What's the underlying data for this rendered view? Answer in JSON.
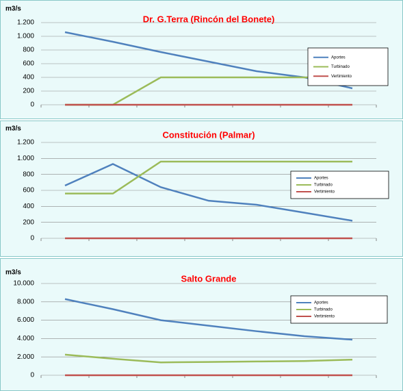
{
  "chart_data": [
    {
      "type": "line",
      "title": "Dr. G.Terra (Rincón del Bonete)",
      "y_label": "m3/s",
      "categories": [
        null,
        null,
        null,
        null,
        null,
        null,
        null
      ],
      "series": [
        {
          "name": "Aportes",
          "color": "#4f81bd",
          "values": [
            1060,
            920,
            770,
            630,
            490,
            400,
            240
          ]
        },
        {
          "name": "Turbinado",
          "color": "#9bbb59",
          "values": [
            0,
            0,
            400,
            400,
            400,
            400,
            400
          ]
        },
        {
          "name": "Vertimiento",
          "color": "#c0504d",
          "values": [
            0,
            0,
            0,
            0,
            0,
            0,
            0
          ]
        }
      ],
      "ylim": [
        0,
        1200
      ],
      "yticks": [
        0,
        200,
        400,
        600,
        800,
        {
          "value": 1000,
          "label": "1.000"
        },
        {
          "value": 1200,
          "label": "1.200"
        }
      ],
      "grid": true
    },
    {
      "type": "line",
      "title": "Constitución (Palmar)",
      "y_label": "m3/s",
      "categories": [
        null,
        null,
        null,
        null,
        null,
        null,
        null
      ],
      "series": [
        {
          "name": "Aportes",
          "color": "#4f81bd",
          "values": [
            660,
            930,
            640,
            470,
            420,
            320,
            220
          ]
        },
        {
          "name": "Turbinado",
          "color": "#9bbb59",
          "values": [
            560,
            560,
            960,
            960,
            960,
            960,
            960
          ]
        },
        {
          "name": "Vertimiento",
          "color": "#c0504d",
          "values": [
            0,
            0,
            0,
            0,
            0,
            0,
            0
          ]
        }
      ],
      "ylim": [
        0,
        1200
      ],
      "yticks": [
        0,
        200,
        400,
        600,
        800,
        {
          "value": 1000,
          "label": "1.000"
        },
        {
          "value": 1200,
          "label": "1.200"
        }
      ],
      "grid": true
    },
    {
      "type": "line",
      "title": "Salto Grande",
      "y_label": "m3/s",
      "categories": [
        null,
        null,
        null,
        null,
        null,
        null,
        null
      ],
      "series": [
        {
          "name": "Aportes",
          "color": "#4f81bd",
          "values": [
            8300,
            7200,
            6000,
            5400,
            4800,
            4250,
            3880
          ]
        },
        {
          "name": "Turbinado",
          "color": "#9bbb59",
          "values": [
            2250,
            1800,
            1400,
            1450,
            1500,
            1550,
            1700
          ]
        },
        {
          "name": "Vertimiento",
          "color": "#c0504d",
          "values": [
            0,
            0,
            0,
            0,
            0,
            0,
            0
          ]
        }
      ],
      "ylim": [
        0,
        10000
      ],
      "yticks": [
        0,
        {
          "value": 2000,
          "label": "2.000"
        },
        {
          "value": 4000,
          "label": "4.000"
        },
        {
          "value": 6000,
          "label": "6.000"
        },
        {
          "value": 8000,
          "label": "8.000"
        },
        {
          "value": 10000,
          "label": "10.000"
        }
      ],
      "grid": true
    }
  ]
}
